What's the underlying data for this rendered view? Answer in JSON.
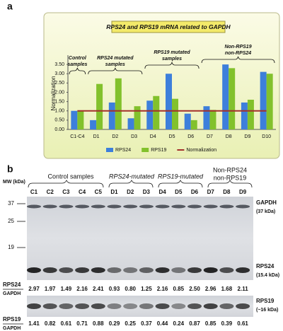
{
  "panel_a": {
    "label": "a",
    "chart_data": {
      "type": "bar",
      "title": "RPS24 and RPS19 mRNA related to GAPDH",
      "y_label": "Normalization",
      "categories": [
        "C1-C4",
        "D1",
        "D2",
        "D3",
        "D4",
        "D5",
        "D6",
        "D7",
        "D8",
        "D9",
        "D10"
      ],
      "series": [
        {
          "name": "RPS24",
          "color": "#3d7fdb",
          "values": [
            1.0,
            0.5,
            1.45,
            0.6,
            1.55,
            3.0,
            0.85,
            1.25,
            3.5,
            1.45,
            3.1
          ]
        },
        {
          "name": "RPS19",
          "color": "#82c12c",
          "values": [
            1.0,
            2.45,
            2.75,
            1.25,
            1.8,
            1.65,
            0.5,
            1.05,
            3.3,
            1.6,
            3.0
          ]
        },
        {
          "name": "Normalization",
          "color": "#a3302b",
          "type": "line",
          "values": [
            1,
            1,
            1,
            1,
            1,
            1,
            1,
            1,
            1,
            1,
            1
          ]
        }
      ],
      "ylim": [
        0,
        4
      ],
      "yticks": [
        {
          "value": 0,
          "label": "0.00"
        },
        {
          "value": 0.5,
          "label": "0.50"
        },
        {
          "value": 1,
          "label": "1.00"
        },
        {
          "value": 1.5,
          "label": "1.50"
        },
        {
          "value": 2,
          "label": "2.00"
        },
        {
          "value": 2.5,
          "label": "2.50"
        },
        {
          "value": 3,
          "label": "3.00"
        },
        {
          "value": 3.5,
          "label": "3.50"
        }
      ],
      "legend": "bottom",
      "annotations": [
        [
          "Control",
          "samples"
        ],
        [
          "RPS24 mutated",
          "samples"
        ],
        [
          "RPS19 mutated",
          "samples"
        ],
        [
          "Non-RPS19",
          "non-RPS24"
        ]
      ]
    }
  },
  "panel_b": {
    "label": "b",
    "mw_label": "MW (kDa)",
    "groups": [
      "Control samples",
      "RPS24-mutated",
      "RPS19-mutated",
      "Non-RPS24",
      "non-RPS19"
    ],
    "lanes": [
      "C1",
      "C2",
      "C3",
      "C4",
      "C5",
      "D1",
      "D2",
      "D3",
      "D4",
      "D5",
      "D6",
      "D7",
      "D8",
      "D9"
    ],
    "mw_markers": [
      "37",
      "25",
      "19"
    ],
    "proteins": [
      {
        "name": "GAPDH",
        "size": "(37 kDa)"
      },
      {
        "name": "RPS24",
        "size": "(15.4 kDa)"
      },
      {
        "name": "RPS19",
        "size": "(~16 kDa)"
      }
    ],
    "ratios": [
      {
        "numerator": "RPS24",
        "denominator": "GAPDH",
        "values": [
          "2.97",
          "1.97",
          "1.49",
          "2.16",
          "2.41",
          "0.93",
          "0.80",
          "1.25",
          "2.16",
          "0.85",
          "2.50",
          "2.96",
          "1.68",
          "2.11"
        ]
      },
      {
        "numerator": "RPS19",
        "denominator": "GAPDH",
        "values": [
          "1.41",
          "0.82",
          "0.61",
          "0.71",
          "0.88",
          "0.29",
          "0.25",
          "0.37",
          "0.44",
          "0.24",
          "0.87",
          "0.85",
          "0.39",
          "0.61"
        ]
      }
    ]
  }
}
